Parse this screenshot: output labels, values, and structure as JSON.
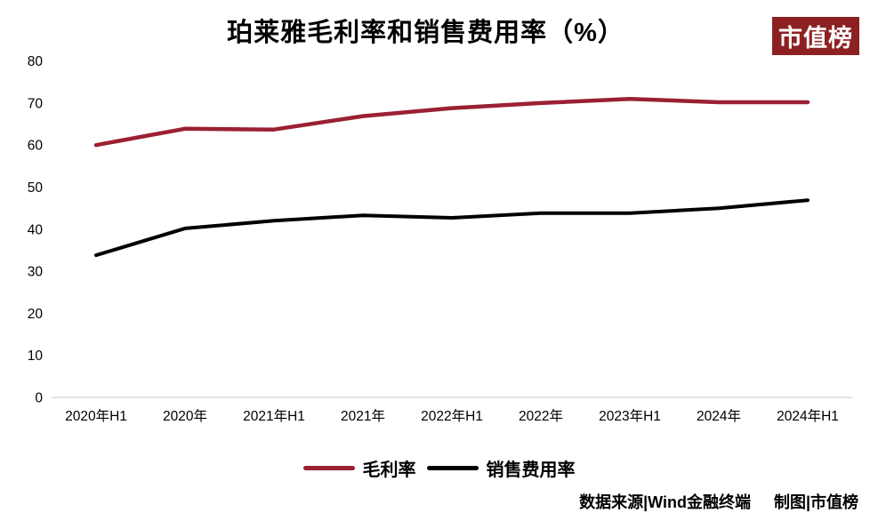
{
  "branding": {
    "logo_text": "市值榜",
    "logo_bg": "#8D2121"
  },
  "footer": {
    "data_source": "数据来源|Wind金融终端",
    "credit": "制图|市值榜"
  },
  "chart_data": {
    "type": "line",
    "title": "珀莱雅毛利率和销售费用率（%）",
    "categories": [
      "2020年H1",
      "2020年",
      "2021年H1",
      "2021年",
      "2022年H1",
      "2022年",
      "2023年H1",
      "2024年",
      "2024年H1"
    ],
    "series": [
      {
        "name": "毛利率",
        "color": "#9B2033",
        "values": [
          60.0,
          63.9,
          63.7,
          66.9,
          68.8,
          70.0,
          71.0,
          70.2,
          70.2
        ]
      },
      {
        "name": "销售费用率",
        "color": "#000000",
        "values": [
          33.8,
          40.2,
          42.0,
          43.3,
          42.7,
          43.8,
          43.8,
          45.0,
          46.9
        ]
      }
    ],
    "ylim": [
      0,
      80
    ],
    "yticks": [
      0,
      10,
      20,
      30,
      40,
      50,
      60,
      70,
      80
    ],
    "grid": false,
    "axis_color": "#D9D9D9",
    "legend_position": "bottom"
  }
}
